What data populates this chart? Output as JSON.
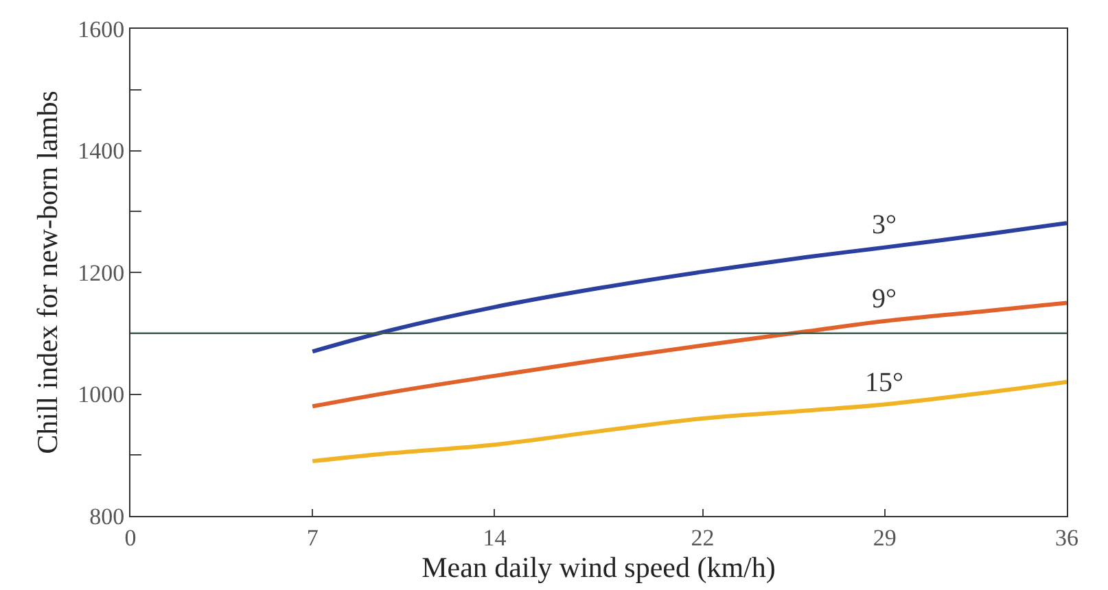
{
  "chart_data": {
    "type": "line",
    "xlabel": "Mean daily wind speed (km/h)",
    "ylabel": "Chill index for new-born lambs",
    "xlim": [
      0,
      36
    ],
    "xticks": [
      0,
      7,
      14,
      22,
      29,
      36
    ],
    "ylim": [
      800,
      1600
    ],
    "yticks": [
      800,
      {
        "value": 900,
        "label": null
      },
      1000,
      {
        "value": 1100,
        "label": null
      },
      1200,
      {
        "value": 1300,
        "label": null
      },
      1400,
      {
        "value": 1500,
        "label": null
      },
      1600
    ],
    "x": [
      7,
      10,
      14,
      18,
      22,
      26,
      29,
      33,
      36
    ],
    "series": [
      {
        "name": "3°",
        "color": "#2b3f9e",
        "values": [
          1070,
          1105,
          1143,
          1174,
          1201,
          1225,
          1241,
          1263,
          1281
        ]
      },
      {
        "name": "9°",
        "color": "#e0612a",
        "values": [
          980,
          1003,
          1030,
          1056,
          1080,
          1103,
          1120,
          1137,
          1150
        ]
      },
      {
        "name": "15°",
        "color": "#f0b323",
        "values": [
          890,
          903,
          917,
          939,
          960,
          973,
          983,
          1003,
          1020
        ]
      }
    ],
    "ref_lines": [
      {
        "axis": "y",
        "value": 1100,
        "color": "#3d5a4a"
      }
    ],
    "grid": false,
    "legend": false,
    "line_style": "solid",
    "marker": "none"
  }
}
